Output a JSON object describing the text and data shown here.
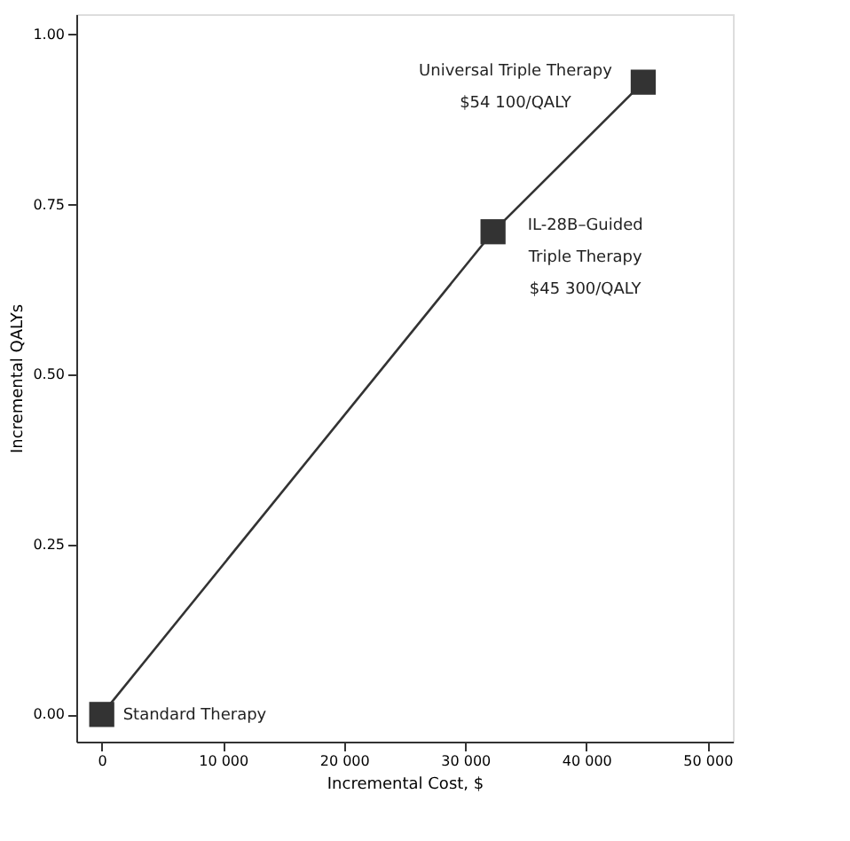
{
  "chart_data": {
    "type": "line",
    "xlabel": "Incremental Cost, $",
    "ylabel": "Incremental QALYs",
    "x": [
      0,
      32300,
      44700
    ],
    "series": [
      {
        "color": "#333333",
        "values": [
          0,
          0.71,
          0.93
        ]
      }
    ],
    "marker": "square",
    "line_style": "solid",
    "grid": false,
    "xlim": [
      -2100,
      52100
    ],
    "ylim": [
      -0.04,
      1.03
    ],
    "xticks": [
      0,
      {
        "value": 10000,
        "label": "10 000"
      },
      {
        "value": 20000,
        "label": "20 000"
      },
      {
        "value": 30000,
        "label": "30 000"
      },
      {
        "value": 40000,
        "label": "40 000"
      },
      {
        "value": 50000,
        "label": "50 000"
      }
    ],
    "yticks": [
      {
        "value": 0,
        "label": "0.00"
      },
      {
        "value": 0.25,
        "label": "0.25"
      },
      {
        "value": 0.5,
        "label": "0.50"
      },
      {
        "value": 0.75,
        "label": "0.75"
      },
      {
        "value": 1,
        "label": "1.00"
      }
    ],
    "annotations": [
      {
        "text": "Standard Therapy",
        "x": 0,
        "y": 0
      },
      {
        "text": "IL-28B–Guided\nTriple Therapy\n$45 300/QALY",
        "x": 32300,
        "y": 0.71
      },
      {
        "text": "Universal Triple Therapy\n$54 100/QALY",
        "x": 44700,
        "y": 0.93
      }
    ]
  }
}
